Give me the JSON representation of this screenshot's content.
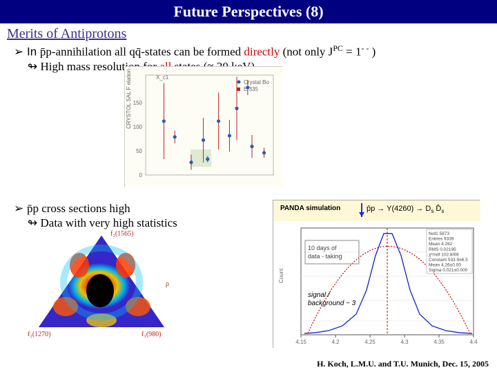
{
  "title": "Future Perspectives (8)",
  "section": "Merits of Antiprotons",
  "bullets": {
    "b1_pre": "➢ In ",
    "b1_pp": "p̄p",
    "b1_mid": "-annihilation all q",
    "b1_qbar": "q̄",
    "b1_post1": "-states can be formed ",
    "b1_directly": "directly",
    "b1_post2": " (not only J",
    "b1_pc": "PC",
    "b1_eq": " = 1",
    "b1_mm": "- -",
    "b1_close": " )",
    "s1_pre": "↬  High mass resolution for ",
    "s1_all": "all",
    "s1_post": " states (≈ 20 keV)",
    "b2_pre": "➢ ",
    "b2_pp": "p̄p",
    "b2_post": " cross sections high",
    "s2": "↬  Data with very high statistics"
  },
  "scatter": {
    "bg": "#fdfdf5",
    "border": "#cccccc",
    "point_fill": "#2a5db0",
    "err_stroke": "#c02020",
    "highlight_fill": "#cfe2c4",
    "axis_color": "#555555",
    "label_color": "#666666",
    "legend": [
      "Crystal Bo",
      "E 335"
    ],
    "points": [
      {
        "x": 30,
        "y": 85,
        "ey": 60
      },
      {
        "x": 48,
        "y": 60,
        "ey": 10
      },
      {
        "x": 75,
        "y": 20,
        "ey": 12
      },
      {
        "x": 95,
        "y": 55,
        "ey": 35
      },
      {
        "x": 102,
        "y": 25,
        "ey": 5
      },
      {
        "x": 120,
        "y": 85,
        "ey": 45
      },
      {
        "x": 138,
        "y": 62,
        "ey": 25
      },
      {
        "x": 150,
        "y": 105,
        "ey": 50
      },
      {
        "x": 175,
        "y": 45,
        "ey": 18
      },
      {
        "x": 195,
        "y": 35,
        "ey": 8
      },
      {
        "x": 168,
        "y": 138,
        "ey": 12
      }
    ],
    "xlabel": " ",
    "ylabel": "CRYSTOL SAL F elation /2 My (t)",
    "top_annot": "X_c1"
  },
  "triangle": {
    "bg": "#000000",
    "colors": {
      "hot": "#ff3a00",
      "warm": "#ffd400",
      "cool": "#00c0ff",
      "cold": "#3a2ad8",
      "mid": "#5a2a9a"
    },
    "labels": {
      "top": "f₂(1565)",
      "right": "ρ",
      "bottomL": "f₂(1270)",
      "bottomR": "f₁(980)"
    },
    "label_color": "#c02020"
  },
  "panda": {
    "title": "PANDA simulation",
    "reaction_pre": "p̄p → Y(4260) → D",
    "reaction_s": "s",
    "reaction_mid": " D̄",
    "box_text": "10 days of\ndata - taking",
    "bg": "#ffffff",
    "curve_color": "#2030d0",
    "fit_color": "#cc0000",
    "axis_color": "#555555",
    "grid_color": "#dddddd",
    "title_band": "#fff8d6",
    "xlim": [
      4.15,
      4.4
    ],
    "xticks": [
      4.15,
      4.2,
      4.25,
      4.3,
      4.35,
      4.4
    ],
    "ylabel": "Count",
    "stats": [
      "fwd1   5873",
      "Entries   9339",
      "Mean   4.262",
      "RMS   0.02195",
      "χ²/ndf   102.8/69",
      "Constant   533.9±6.5",
      "Mean   4.26±0.00",
      "Sigma   0.021±0.000"
    ],
    "annot": "signal /\nbackground ~ 3"
  },
  "footer": "H. Koch, L.M.U. and T.U.  Munich, Dec. 15, 2005"
}
